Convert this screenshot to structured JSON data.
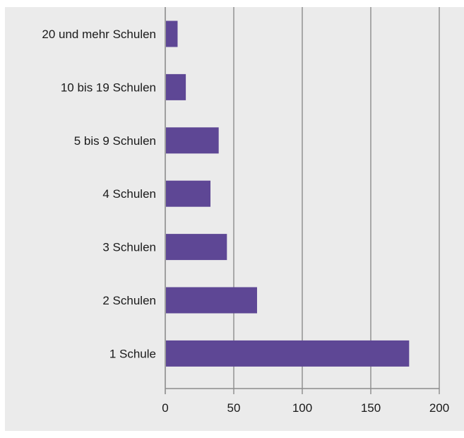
{
  "chart_data": {
    "type": "bar",
    "orientation": "horizontal",
    "categories": [
      "20 und mehr Schulen",
      "10 bis 19 Schulen",
      "5 bis 9 Schulen",
      "4 Schulen",
      "3 Schulen",
      "2 Schulen",
      "1 Schule"
    ],
    "values": [
      9,
      15,
      39,
      33,
      45,
      67,
      178
    ],
    "xlim": [
      0,
      200
    ],
    "xticks": [
      "0",
      "50",
      "100",
      "150",
      "200"
    ],
    "grid": "vertical",
    "title": "",
    "xlabel": "",
    "ylabel": "",
    "colors": {
      "bar": "#5e4795",
      "background": "#ebebeb",
      "grid": "#8c8c8c",
      "text": "#1a1a1a"
    }
  }
}
